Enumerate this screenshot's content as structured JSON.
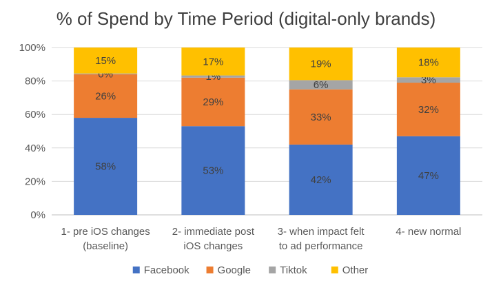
{
  "chart_data": {
    "type": "bar",
    "stacked": true,
    "title": "% of Spend by Time Period (digital-only brands)",
    "xlabel": "",
    "ylabel": "",
    "ylim": [
      0,
      100
    ],
    "yticks": [
      "0%",
      "20%",
      "40%",
      "60%",
      "80%",
      "100%"
    ],
    "grid": true,
    "legend_position": "bottom",
    "categories": [
      [
        "1- pre iOS changes",
        "(baseline)"
      ],
      [
        "2- immediate post",
        "iOS changes"
      ],
      [
        "3- when impact felt",
        "to ad performance"
      ],
      [
        "4- new normal"
      ]
    ],
    "series": [
      {
        "name": "Facebook",
        "color": "#4472c4",
        "values": [
          58,
          53,
          42,
          47
        ],
        "labels": [
          "58%",
          "53%",
          "42%",
          "47%"
        ]
      },
      {
        "name": "Google",
        "color": "#ed7d31",
        "values": [
          26,
          29,
          33,
          32
        ],
        "labels": [
          "26%",
          "29%",
          "33%",
          "32%"
        ]
      },
      {
        "name": "Tiktok",
        "color": "#a5a5a5",
        "values": [
          0.5,
          1.3,
          5.5,
          3.2
        ],
        "labels": [
          "0%",
          "1%",
          "6%",
          "3%"
        ]
      },
      {
        "name": "Other",
        "color": "#ffc000",
        "values": [
          15.5,
          16.7,
          19.5,
          17.8
        ],
        "labels": [
          "15%",
          "17%",
          "19%",
          "18%"
        ]
      }
    ]
  }
}
